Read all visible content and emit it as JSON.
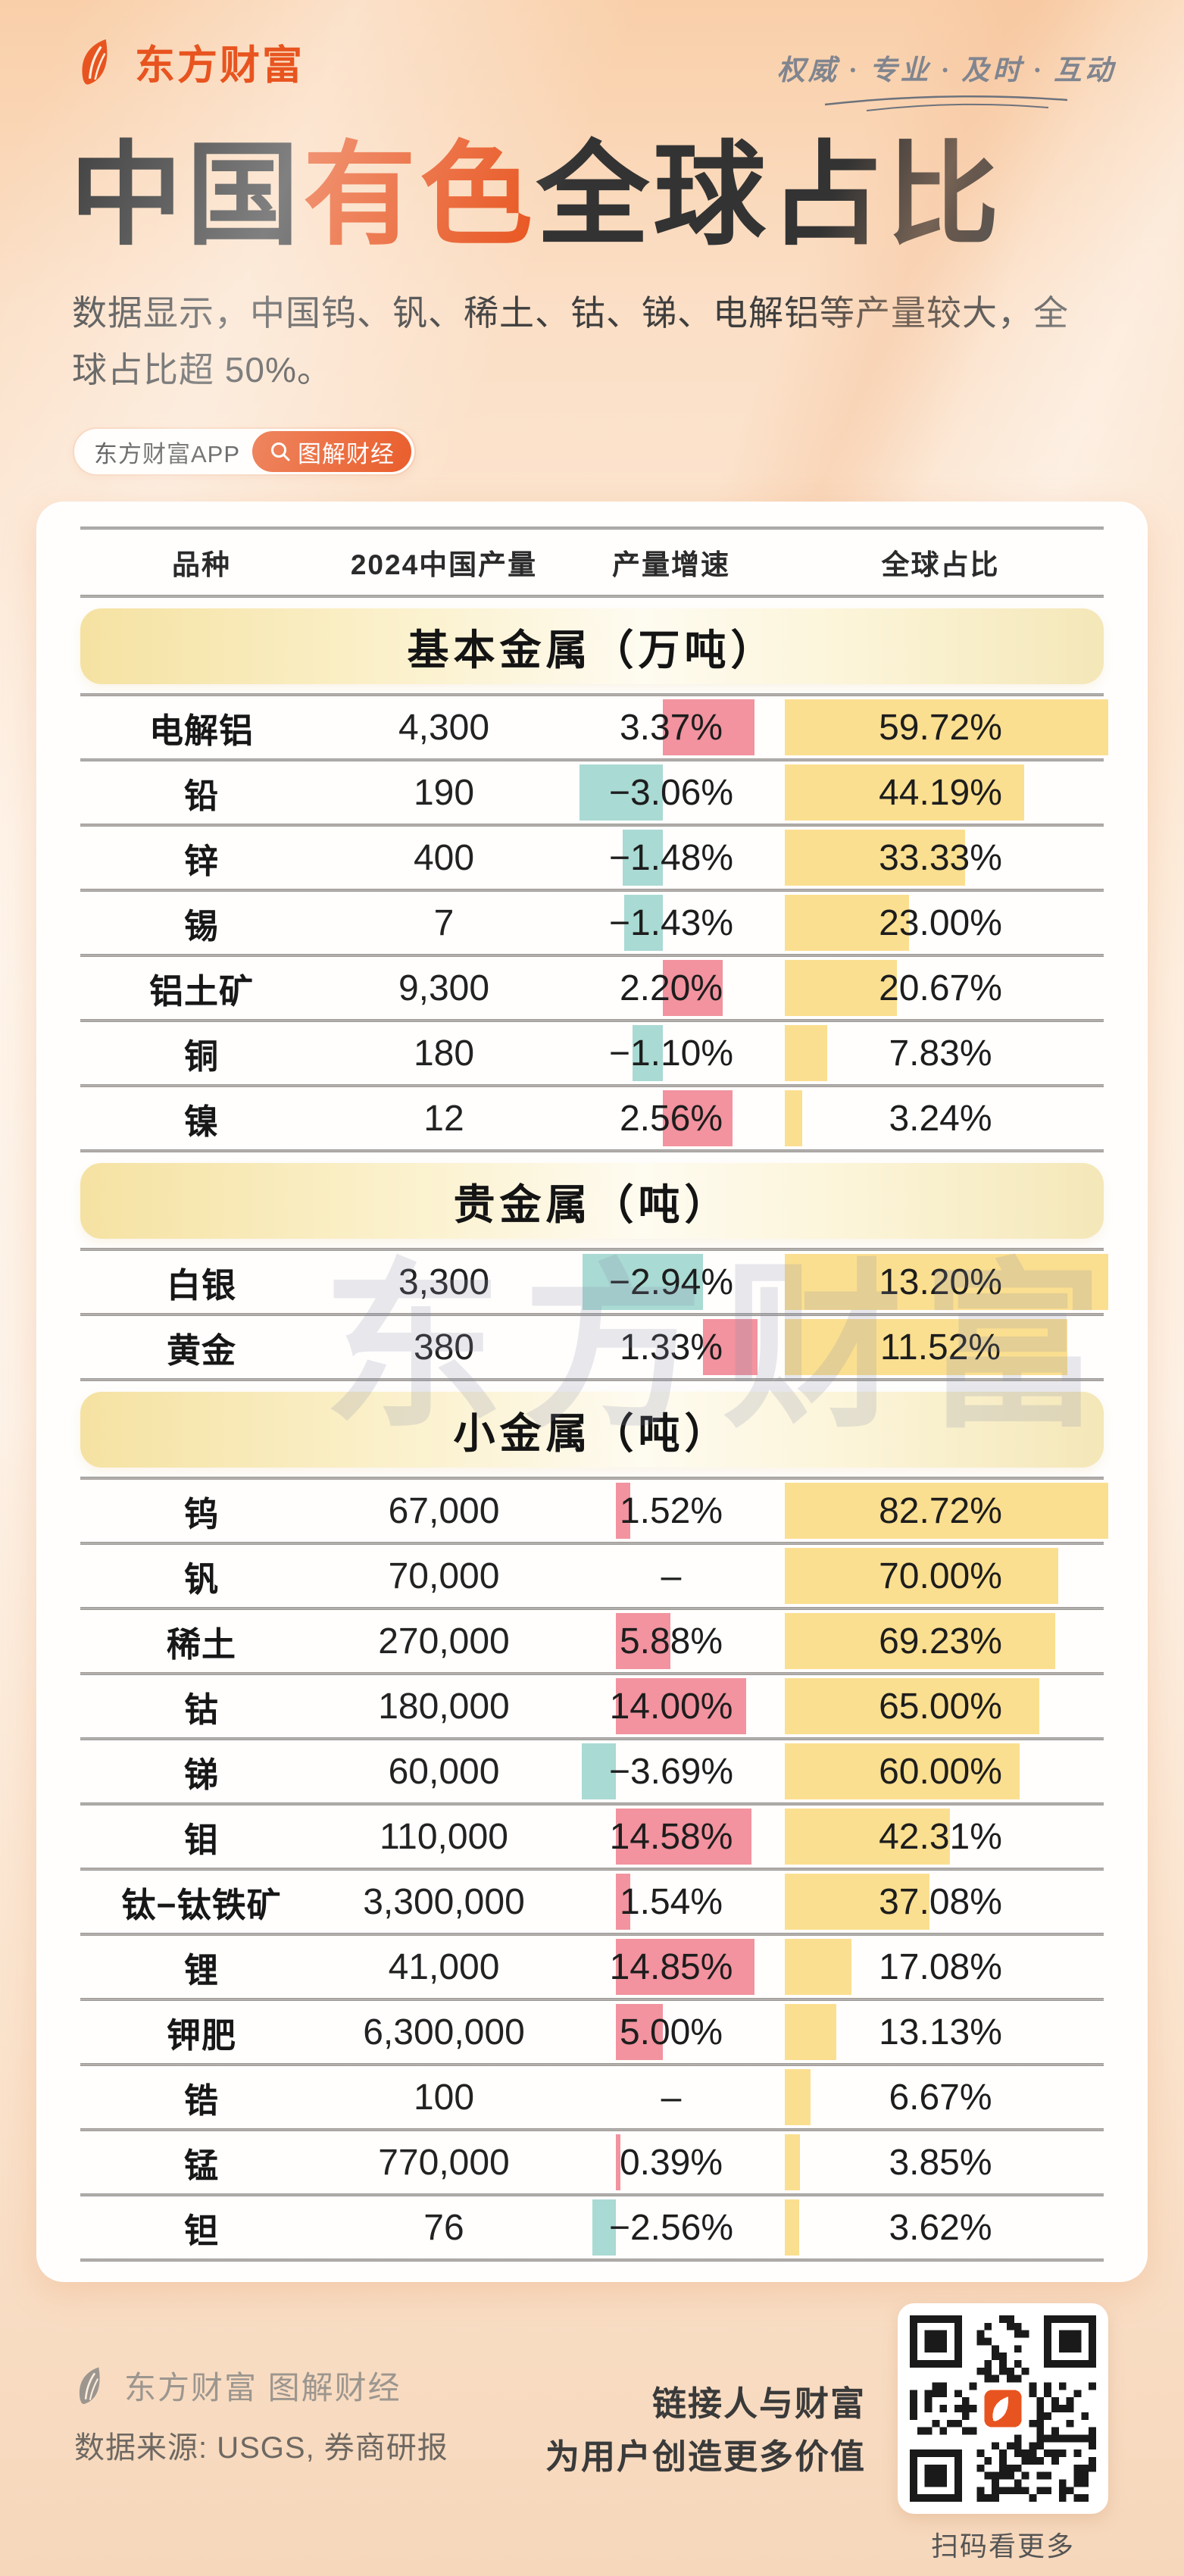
{
  "brand": {
    "logo_text": "东方财富",
    "slogan": "权威 · 专业 · 及时 · 互动",
    "badge_app": "东方财富APP",
    "badge_column": "图解财经"
  },
  "header": {
    "title_part1": "中国",
    "title_accent": "有色",
    "title_part2": "全球占比",
    "subtitle": "数据显示，中国钨、钒、稀土、钴、锑、电解铝等产量较大，全球占比超 50%。"
  },
  "watermark": "东方财富",
  "colors": {
    "accent": "#E8541F",
    "positive_bar": "#F2939F",
    "negative_bar": "#A9DAD3",
    "share_bar": "#FBDF90"
  },
  "table": {
    "columns": [
      "品种",
      "2024中国产量",
      "产量增速",
      "全球占比"
    ],
    "sections": [
      {
        "title": "基本金属（万吨）",
        "rows": [
          {
            "name": "电解铝",
            "production": "4,300",
            "growth": 3.37,
            "growth_label": "3.37%",
            "share": 59.72,
            "share_label": "59.72%"
          },
          {
            "name": "铅",
            "production": "190",
            "growth": -3.06,
            "growth_label": "−3.06%",
            "share": 44.19,
            "share_label": "44.19%"
          },
          {
            "name": "锌",
            "production": "400",
            "growth": -1.48,
            "growth_label": "−1.48%",
            "share": 33.33,
            "share_label": "33.33%"
          },
          {
            "name": "锡",
            "production": "7",
            "growth": -1.43,
            "growth_label": "−1.43%",
            "share": 23.0,
            "share_label": "23.00%"
          },
          {
            "name": "铝土矿",
            "production": "9,300",
            "growth": 2.2,
            "growth_label": "2.20%",
            "share": 20.67,
            "share_label": "20.67%"
          },
          {
            "name": "铜",
            "production": "180",
            "growth": -1.1,
            "growth_label": "−1.10%",
            "share": 7.83,
            "share_label": "7.83%"
          },
          {
            "name": "镍",
            "production": "12",
            "growth": 2.56,
            "growth_label": "2.56%",
            "share": 3.24,
            "share_label": "3.24%"
          }
        ]
      },
      {
        "title": "贵金属（吨）",
        "rows": [
          {
            "name": "白银",
            "production": "3,300",
            "growth": -2.94,
            "growth_label": "−2.94%",
            "share": 13.2,
            "share_label": "13.20%"
          },
          {
            "name": "黄金",
            "production": "380",
            "growth": 1.33,
            "growth_label": "1.33%",
            "share": 11.52,
            "share_label": "11.52%"
          }
        ]
      },
      {
        "title": "小金属（吨）",
        "rows": [
          {
            "name": "钨",
            "production": "67,000",
            "growth": 1.52,
            "growth_label": "1.52%",
            "share": 82.72,
            "share_label": "82.72%"
          },
          {
            "name": "钒",
            "production": "70,000",
            "growth": null,
            "growth_label": "–",
            "share": 70.0,
            "share_label": "70.00%"
          },
          {
            "name": "稀土",
            "production": "270,000",
            "growth": 5.88,
            "growth_label": "5.88%",
            "share": 69.23,
            "share_label": "69.23%"
          },
          {
            "name": "钴",
            "production": "180,000",
            "growth": 14.0,
            "growth_label": "14.00%",
            "share": 65.0,
            "share_label": "65.00%"
          },
          {
            "name": "锑",
            "production": "60,000",
            "growth": -3.69,
            "growth_label": "−3.69%",
            "share": 60.0,
            "share_label": "60.00%"
          },
          {
            "name": "钼",
            "production": "110,000",
            "growth": 14.58,
            "growth_label": "14.58%",
            "share": 42.31,
            "share_label": "42.31%"
          },
          {
            "name": "钛−钛铁矿",
            "production": "3,300,000",
            "growth": 1.54,
            "growth_label": "1.54%",
            "share": 37.08,
            "share_label": "37.08%"
          },
          {
            "name": "锂",
            "production": "41,000",
            "growth": 14.85,
            "growth_label": "14.85%",
            "share": 17.08,
            "share_label": "17.08%"
          },
          {
            "name": "钾肥",
            "production": "6,300,000",
            "growth": 5.0,
            "growth_label": "5.00%",
            "share": 13.13,
            "share_label": "13.13%"
          },
          {
            "name": "锆",
            "production": "100",
            "growth": null,
            "growth_label": "–",
            "share": 6.67,
            "share_label": "6.67%"
          },
          {
            "name": "锰",
            "production": "770,000",
            "growth": 0.39,
            "growth_label": "0.39%",
            "share": 3.85,
            "share_label": "3.85%"
          },
          {
            "name": "钽",
            "production": "76",
            "growth": -2.56,
            "growth_label": "−2.56%",
            "share": 3.62,
            "share_label": "3.62%"
          }
        ]
      }
    ]
  },
  "chart_data": {
    "type": "table",
    "title": "中国有色全球占比",
    "subtitle": "数据显示，中国钨、钒、稀土、钴、锑、电解铝等产量较大，全球占比超 50%。",
    "columns": [
      "品种",
      "2024中国产量",
      "产量增速",
      "全球占比"
    ],
    "bar_encoding": "产量增速列：红粉色条=正增长、青绿色条=负增长（条长按各分组最大值归一）；全球占比列：黄色条按各分组最大占比归一",
    "sections": [
      {
        "name": "基本金属（万吨）",
        "rows": [
          [
            "电解铝",
            4300,
            3.37,
            59.72
          ],
          [
            "铅",
            190,
            -3.06,
            44.19
          ],
          [
            "锌",
            400,
            -1.48,
            33.33
          ],
          [
            "锡",
            7,
            -1.43,
            23.0
          ],
          [
            "铝土矿",
            9300,
            2.2,
            20.67
          ],
          [
            "铜",
            180,
            -1.1,
            7.83
          ],
          [
            "镍",
            12,
            2.56,
            3.24
          ]
        ]
      },
      {
        "name": "贵金属（吨）",
        "rows": [
          [
            "白银",
            3300,
            -2.94,
            13.2
          ],
          [
            "黄金",
            380,
            1.33,
            11.52
          ]
        ]
      },
      {
        "name": "小金属（吨）",
        "rows": [
          [
            "钨",
            67000,
            1.52,
            82.72
          ],
          [
            "钒",
            70000,
            null,
            70.0
          ],
          [
            "稀土",
            270000,
            5.88,
            69.23
          ],
          [
            "钴",
            180000,
            14.0,
            65.0
          ],
          [
            "锑",
            60000,
            -3.69,
            60.0
          ],
          [
            "钼",
            110000,
            14.58,
            42.31
          ],
          [
            "钛−钛铁矿",
            3300000,
            1.54,
            37.08
          ],
          [
            "锂",
            41000,
            14.85,
            17.08
          ],
          [
            "钾肥",
            6300000,
            5.0,
            13.13
          ],
          [
            "锆",
            100,
            null,
            6.67
          ],
          [
            "锰",
            770000,
            0.39,
            3.85
          ],
          [
            "钽",
            76,
            -2.56,
            3.62
          ]
        ]
      }
    ]
  },
  "footer": {
    "brand_line": "东方财富 图解财经",
    "source_line": "数据来源: USGS, 券商研报",
    "value_line1": "链接人与财富",
    "value_line2": "为用户创造更多价值",
    "qr_caption": "扫码看更多"
  }
}
